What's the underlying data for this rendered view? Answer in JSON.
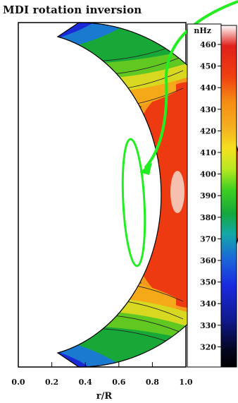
{
  "chart_data": {
    "type": "heatmap",
    "title": "MDI rotation inversion",
    "xlabel": "r/R",
    "ylabel": "",
    "x_ticks": [
      "0.0",
      "0.2",
      "0.4",
      "0.6",
      "0.8",
      "1.0"
    ],
    "xlim": [
      0.0,
      1.0
    ],
    "colorbar": {
      "unit": "nHz",
      "ticks": [
        460,
        450,
        440,
        430,
        420,
        410,
        400,
        390,
        380,
        370,
        360,
        350,
        340,
        330,
        320
      ],
      "range": [
        310,
        470
      ]
    },
    "colors": {
      "high": "#ee3a10",
      "mid": "#f49a1a",
      "green": "#33c21a",
      "low": "#1a3ad8",
      "annotation": "#22ee22"
    }
  }
}
